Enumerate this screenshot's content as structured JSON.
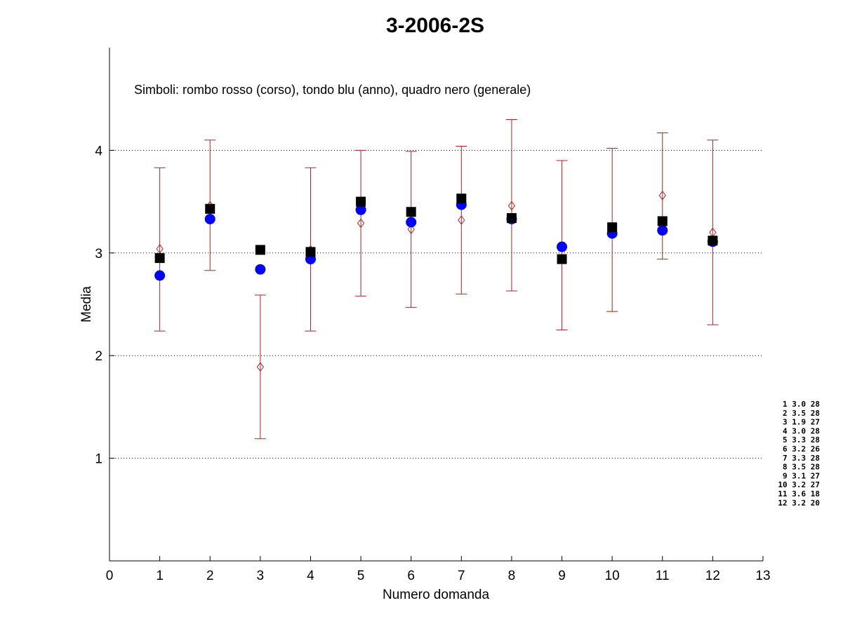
{
  "chart_data": {
    "type": "scatter",
    "title": "3-2006-2S",
    "xlabel": "Numero domanda",
    "ylabel": "Media",
    "xlim": [
      0,
      13
    ],
    "ylim": [
      0,
      5
    ],
    "xticks": [
      0,
      1,
      2,
      3,
      4,
      5,
      6,
      7,
      8,
      9,
      10,
      11,
      12,
      13
    ],
    "yticks": [
      1,
      2,
      3,
      4
    ],
    "grid": "horizontal-dotted",
    "annotation": "Simboli: rombo rosso (corso), tondo blu (anno), quadro nero (generale)",
    "x": [
      1,
      2,
      3,
      4,
      5,
      6,
      7,
      8,
      9,
      10,
      11,
      12
    ],
    "series": [
      {
        "marker": "diamond",
        "color": "#b22222",
        "values": [
          3.04,
          3.46,
          1.89,
          3.03,
          3.29,
          3.23,
          3.32,
          3.46,
          3.07,
          3.22,
          3.56,
          3.2
        ],
        "err_low": [
          2.24,
          2.83,
          1.19,
          2.24,
          2.58,
          2.47,
          2.6,
          2.63,
          2.25,
          2.43,
          2.94,
          2.3
        ],
        "err_high": [
          3.83,
          4.1,
          2.59,
          3.83,
          4.0,
          3.99,
          4.04,
          4.3,
          3.9,
          4.02,
          4.17,
          4.1
        ]
      },
      {
        "marker": "circle",
        "color": "#0000ff",
        "values": [
          2.78,
          3.33,
          2.84,
          2.94,
          3.42,
          3.3,
          3.47,
          3.33,
          3.06,
          3.19,
          3.22,
          3.11
        ]
      },
      {
        "marker": "square",
        "color": "#000000",
        "values": [
          2.95,
          3.43,
          3.03,
          3.01,
          3.5,
          3.4,
          3.53,
          3.34,
          2.94,
          3.25,
          3.31,
          3.12
        ]
      }
    ],
    "side_table": [
      "1  3.0  28",
      "2  3.5  28",
      "3  1.9  27",
      "4  3.0  28",
      "5  3.3  28",
      "6  3.2  26",
      "7  3.3  28",
      "8  3.5  28",
      "9  3.1  27",
      "10  3.2  27",
      "11  3.6  18",
      "12  3.2  20"
    ]
  }
}
